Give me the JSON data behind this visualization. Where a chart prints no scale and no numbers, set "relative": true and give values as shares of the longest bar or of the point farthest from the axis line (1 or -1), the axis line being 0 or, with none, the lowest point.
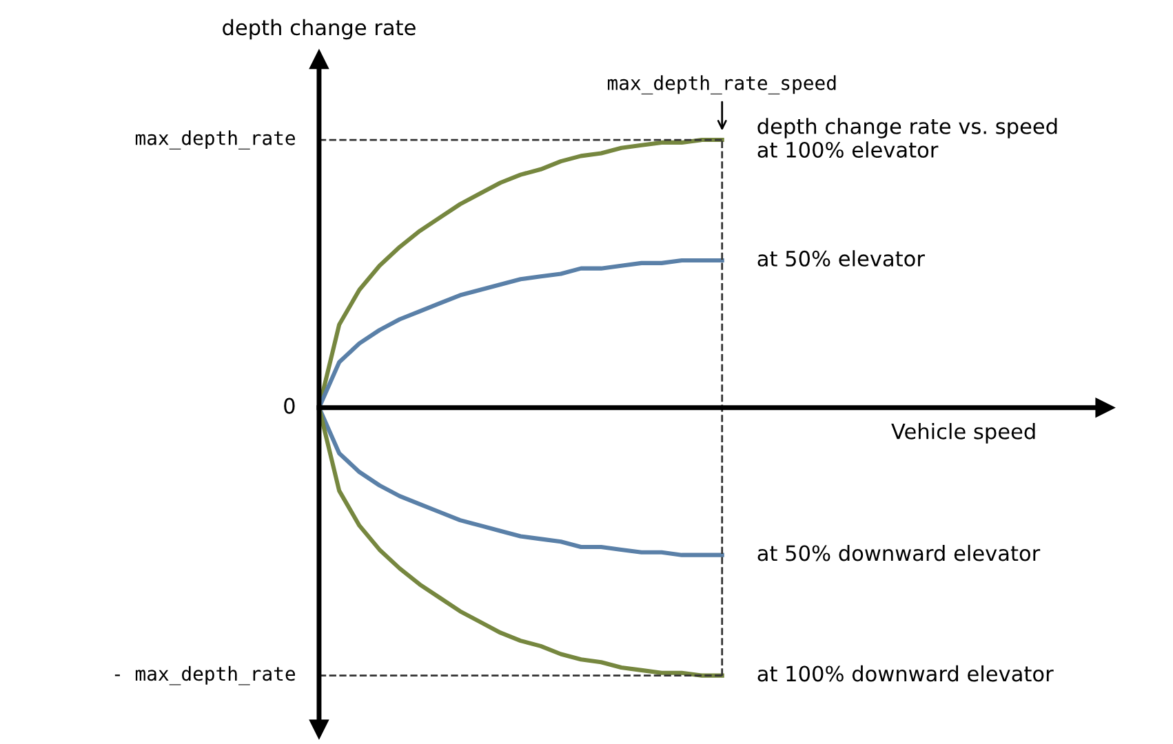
{
  "chart_data": {
    "type": "line",
    "ylabel": "depth change rate",
    "relative": true,
    "categories": [
      null,
      null,
      null,
      null,
      null,
      null,
      null,
      null,
      null,
      null,
      null,
      null,
      null,
      null,
      null,
      null,
      null,
      null,
      null,
      null,
      null
    ],
    "series": [
      {
        "color": "#76873f",
        "values": [
          0,
          0.31,
          0.44,
          0.53,
          0.6,
          0.66,
          0.71,
          0.76,
          0.8,
          0.84,
          0.87,
          0.89,
          0.92,
          0.94,
          0.95,
          0.97,
          0.98,
          0.99,
          0.99,
          1,
          1
        ]
      },
      {
        "color": "#5a80a8",
        "values": [
          0,
          0.17,
          0.24,
          0.29,
          0.33,
          0.36,
          0.39,
          0.42,
          0.44,
          0.46,
          0.48,
          0.49,
          0.5,
          0.52,
          0.52,
          0.53,
          0.54,
          0.54,
          0.55,
          0.55,
          0.55
        ]
      },
      {
        "color": "#5a80a8",
        "values": [
          0,
          -0.17,
          -0.24,
          -0.29,
          -0.33,
          -0.36,
          -0.39,
          -0.42,
          -0.44,
          -0.46,
          -0.48,
          -0.49,
          -0.5,
          -0.52,
          -0.52,
          -0.53,
          -0.54,
          -0.54,
          -0.55,
          -0.55,
          -0.55
        ]
      },
      {
        "color": "#76873f",
        "values": [
          0,
          -0.31,
          -0.44,
          -0.53,
          -0.6,
          -0.66,
          -0.71,
          -0.76,
          -0.8,
          -0.84,
          -0.87,
          -0.89,
          -0.92,
          -0.94,
          -0.95,
          -0.97,
          -0.98,
          -0.99,
          -0.99,
          -1,
          -1
        ]
      }
    ],
    "ref_lines": [
      {
        "axis": "y",
        "value": 1,
        "label": "max_depth_rate",
        "line_style": "dashed",
        "color": "#333333"
      },
      {
        "axis": "y",
        "value": -1,
        "label": "- max_depth_rate",
        "line_style": "dashed",
        "color": "#333333"
      }
    ],
    "annotations": [
      "depth change rate vs. speed\nat 100% elevator",
      "at 50% elevator",
      "at 50% downward elevator",
      "at 100% downward elevator",
      "0",
      "max_depth_rate_speed",
      "Vehicle speed"
    ],
    "grid": false,
    "line_style": "solid",
    "marker": "none"
  }
}
